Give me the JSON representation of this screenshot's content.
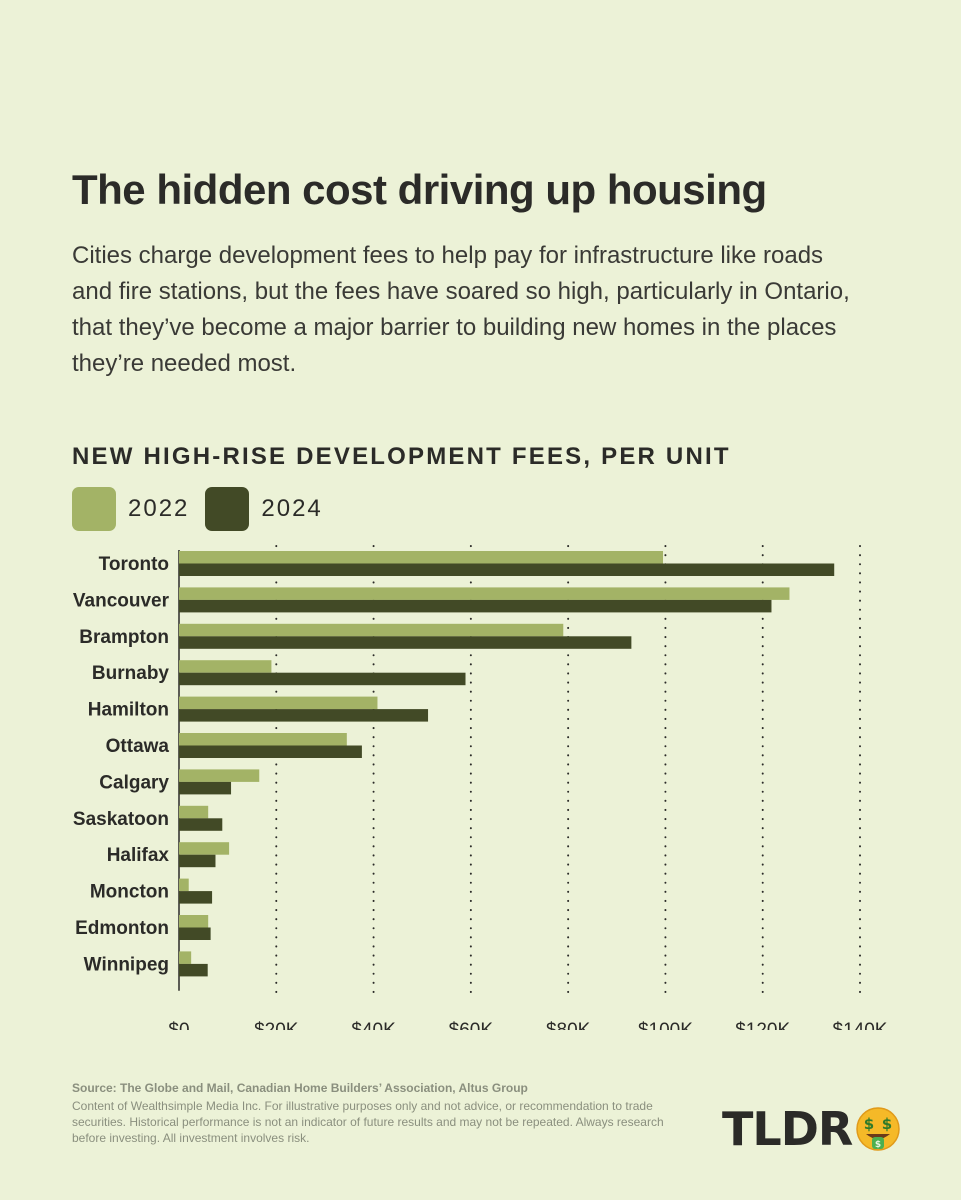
{
  "header": {
    "title": "The hidden cost driving up housing",
    "subtitle": "Cities charge development fees to help pay for infrastructure like roads and fire stations, but the fees have soared so high, particularly in Ontario, that they’ve become a major barrier to building new homes in the places they’re needed most."
  },
  "colors": {
    "background": "#ecf2d7",
    "s2022": "#a3b366",
    "s2024": "#424a26"
  },
  "chart_data": {
    "type": "bar",
    "orientation": "horizontal",
    "title": "NEW HIGH-RISE DEVELOPMENT FEES, PER UNIT",
    "categories": [
      "Toronto",
      "Vancouver",
      "Brampton",
      "Burnaby",
      "Hamilton",
      "Ottawa",
      "Calgary",
      "Saskatoon",
      "Halifax",
      "Moncton",
      "Edmonton",
      "Winnipeg"
    ],
    "series": [
      {
        "name": "2022",
        "color": "#a3b366",
        "values": [
          99500,
          125500,
          79000,
          19000,
          40800,
          34500,
          16500,
          6000,
          10300,
          2000,
          6000,
          2500
        ]
      },
      {
        "name": "2024",
        "color": "#424a26",
        "values": [
          134700,
          121800,
          93000,
          58900,
          51200,
          37600,
          10700,
          8900,
          7500,
          6800,
          6500,
          5900
        ]
      }
    ],
    "xlim": [
      0,
      140000
    ],
    "xticks": [
      "$0",
      "$20K",
      "$40K",
      "$60K",
      "$80K",
      "$100K",
      "$120K",
      "$140K"
    ],
    "grid": "vertical dotted",
    "legend": "top-left"
  },
  "footer": {
    "source": "Source: The Globe and Mail, Canadian Home Builders’ Association, Altus Group",
    "disclaimer": "Content of Wealthsimple Media Inc. For illustrative purposes only and not advice, or recommendation to trade securities. Historical performance is not an indicator of future results and may not be repeated. Always research before investing. All investment involves risk.",
    "logo": "TLDR",
    "logo_icon": "money-face-icon"
  }
}
